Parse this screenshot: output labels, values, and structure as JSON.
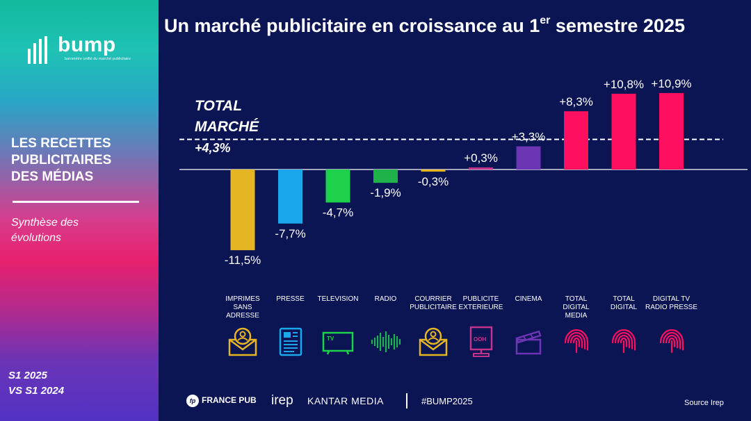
{
  "sidebar": {
    "brand": "bump",
    "brand_tagline": "baromètre unifié du marché publicitaire",
    "title_lines": [
      "LES RECETTES",
      "PUBLICITAIRES",
      "DES MÉDIAS"
    ],
    "subtitle_lines": [
      "Synthèse des",
      "évolutions"
    ],
    "period_lines": [
      "S1 2025",
      "VS S1 2024"
    ]
  },
  "header": {
    "title_main": "Un marché publicitaire en croissance au 1",
    "title_sup": "er",
    "title_end": " semestre 2025"
  },
  "chart_data": {
    "type": "bar",
    "title": "Un marché publicitaire en croissance au 1er semestre 2025",
    "categories": [
      "IMPRIMES SANS ADRESSE",
      "PRESSE",
      "TELEVISION",
      "RADIO",
      "COURRIER PUBLICITAIRE",
      "PUBLICITE EXTERIEURE",
      "CINEMA",
      "TOTAL DIGITAL MEDIA",
      "TOTAL DIGITAL",
      "DIGITAL TV RADIO PRESSE"
    ],
    "category_lines": [
      [
        "IMPRIMES",
        "SANS",
        "ADRESSE"
      ],
      [
        "PRESSE"
      ],
      [
        "TELEVISION"
      ],
      [
        "RADIO"
      ],
      [
        "COURRIER",
        "PUBLICITAIRE"
      ],
      [
        "PUBLICITE",
        "EXTERIEURE"
      ],
      [
        "CINEMA"
      ],
      [
        "TOTAL",
        "DIGITAL",
        "MEDIA"
      ],
      [
        "TOTAL",
        "DIGITAL"
      ],
      [
        "DIGITAL TV",
        "RADIO PRESSE"
      ]
    ],
    "values": [
      -11.5,
      -7.7,
      -4.7,
      -1.9,
      -0.3,
      0.3,
      3.3,
      8.3,
      10.8,
      10.9
    ],
    "labels": [
      "-11,5%",
      "-7,7%",
      "-4,7%",
      "-1,9%",
      "-0,3%",
      "+0,3%",
      "+3,3%",
      "+8,3%",
      "+10,8%",
      "+10,9%"
    ],
    "colors": [
      "#e6b523",
      "#1aa7ec",
      "#1ed14b",
      "#20b24a",
      "#e6b523",
      "#c2338c",
      "#6c35b3",
      "#ff0f5f",
      "#ff0f5f",
      "#ff0f5f"
    ],
    "icons": [
      "envelope-person-icon",
      "newspaper-icon",
      "tv-icon",
      "soundwave-icon",
      "envelope-person-icon",
      "billboard-ooh-icon",
      "clapperboard-icon",
      "fingerprint-icon",
      "fingerprint-icon",
      "fingerprint-icon"
    ],
    "ooh_text": "OOH",
    "tv_text": "TV",
    "reference_line": {
      "value": 4.3,
      "label_lines": [
        "TOTAL",
        "MARCHÉ",
        "+4,3%"
      ]
    },
    "ylim": [
      -11.5,
      10.9
    ]
  },
  "footer": {
    "france_pub": "FRANCE PUB",
    "france_pub_mark": "fp",
    "irep": "irep",
    "kantar": "KANTAR MEDIA",
    "hashtag": "#BUMP2025",
    "source": "Source Irep"
  }
}
